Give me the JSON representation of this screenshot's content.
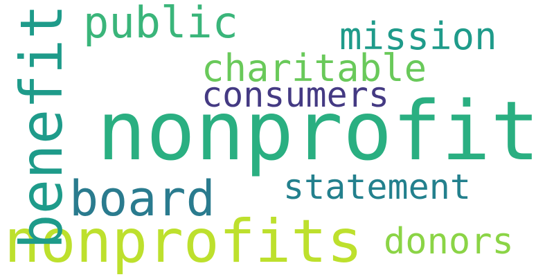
{
  "words": [
    {
      "text": "nonprofit",
      "color": "#2aaf81"
    },
    {
      "text": "nonprofits",
      "color": "#bde02d"
    },
    {
      "text": "benefit",
      "color": "#1e9b8a"
    },
    {
      "text": "board",
      "color": "#2a7b8e"
    },
    {
      "text": "public",
      "color": "#3ab57a"
    },
    {
      "text": "charitable",
      "color": "#69c95a"
    },
    {
      "text": "consumers",
      "color": "#443a83"
    },
    {
      "text": "mission",
      "color": "#1f9b8a"
    },
    {
      "text": "statement",
      "color": "#23808d"
    },
    {
      "text": "donors",
      "color": "#8bd446"
    }
  ]
}
